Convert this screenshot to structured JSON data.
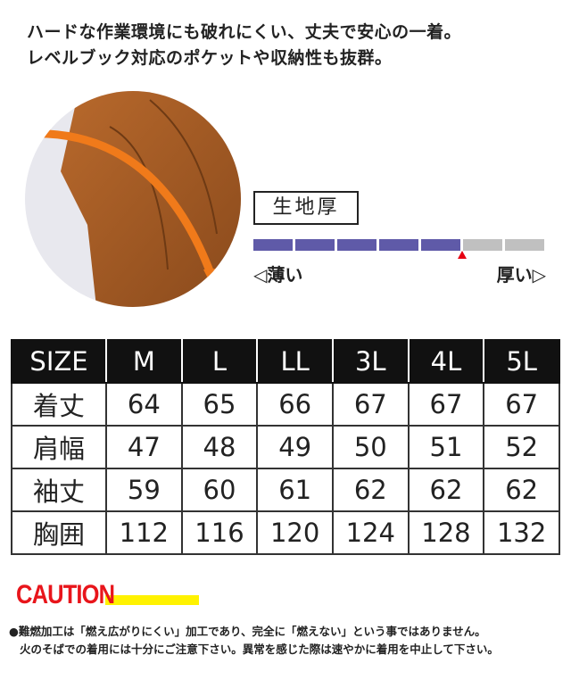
{
  "headline": {
    "line1": "ハードな作業環境にも破れにくい、丈夫で安心の一着。",
    "line2": "レベルブック対応のポケットや収納性も抜群。"
  },
  "fabric": {
    "label": "生地厚",
    "thin_label": "◁薄い",
    "thick_label": "厚い▷",
    "level": 5,
    "max": 7,
    "filled_color": "#5f5aa8",
    "empty_color": "#c0c0c0"
  },
  "size_table": {
    "headers": [
      "SIZE",
      "M",
      "L",
      "LL",
      "3L",
      "4L",
      "5L"
    ],
    "rows": [
      [
        "着丈",
        "64",
        "65",
        "66",
        "67",
        "67",
        "67"
      ],
      [
        "肩幅",
        "47",
        "48",
        "49",
        "50",
        "51",
        "52"
      ],
      [
        "袖丈",
        "59",
        "60",
        "61",
        "62",
        "62",
        "62"
      ],
      [
        "胸囲",
        "112",
        "116",
        "120",
        "124",
        "128",
        "132"
      ]
    ]
  },
  "caution": {
    "title": "CAUTION",
    "line1": "●難燃加工は「燃え広がりにくい」加工であり、完全に「燃えない」という事ではありません。",
    "line2": "火のそばでの着用には十分にご注意下さい。異常を感じた際は速やかに着用を中止して下さい。"
  }
}
